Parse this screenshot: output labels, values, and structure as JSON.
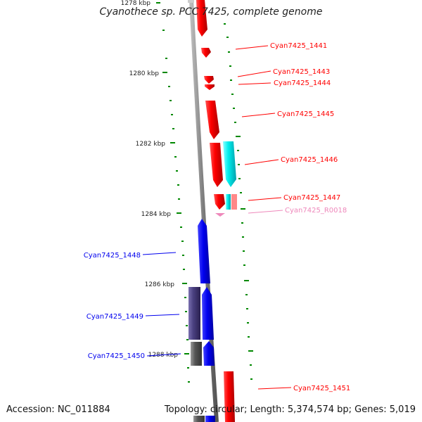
{
  "title": "Cyanothece sp. PCC 7425, complete genome",
  "footer": {
    "accession": "Accession: NC_011884",
    "summary": "Topology: circular; Length: 5,374,574 bp; Genes: 5,019"
  },
  "scale_labels": [
    "1278 kbp",
    "1280 kbp",
    "1282 kbp",
    "1284 kbp",
    "1286 kbp",
    "1288 kbp"
  ],
  "gene_labels": {
    "right": [
      "Cyan7425_1441",
      "Cyan7425_1443",
      "Cyan7425_1444",
      "Cyan7425_1445",
      "Cyan7425_1446",
      "Cyan7425_1447",
      "Cyan7425_R0018",
      "Cyan7425_1451"
    ],
    "left": [
      "Cyan7425_1448",
      "Cyan7425_1449",
      "Cyan7425_1450"
    ]
  },
  "colors": {
    "forward": "#ff0000",
    "reverse": "#0000ee",
    "cyan_track": "#00e5ee",
    "rna": "#ee88bb",
    "purple_track": "#4a4080",
    "gray_track": "#555555",
    "tick": "#008800",
    "backbone": "#888888"
  }
}
